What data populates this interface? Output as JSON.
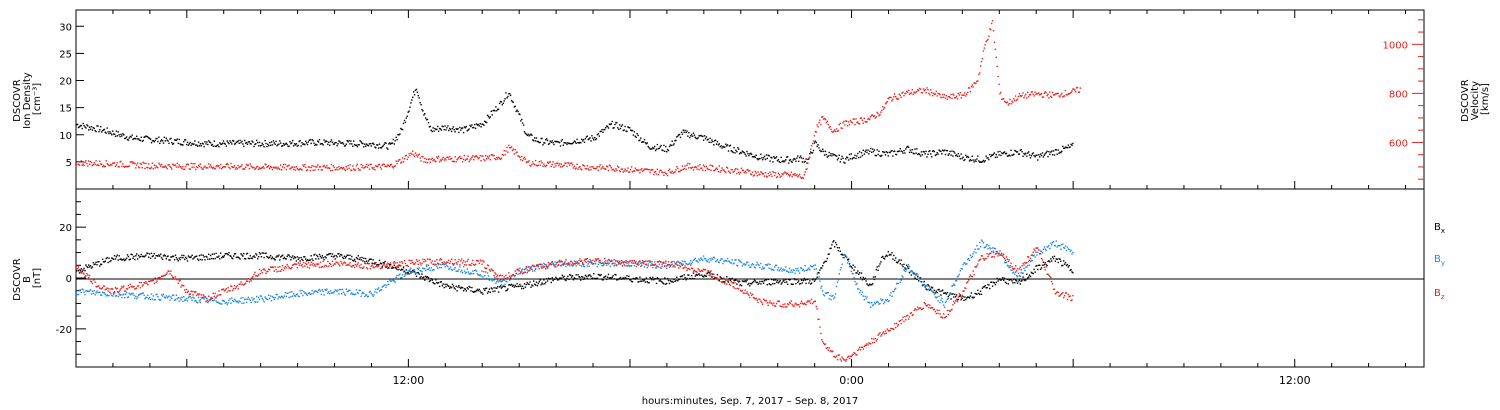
{
  "chart_data": [
    {
      "type": "scatter",
      "panel": "plasma",
      "left_axis": {
        "label_lines": [
          "DSCOVR",
          "Ion Density",
          "[cm⁻³]"
        ],
        "ylim": [
          0,
          33
        ],
        "ticks": [
          5,
          10,
          15,
          20,
          25,
          30
        ],
        "color": "#000000"
      },
      "right_axis": {
        "label_lines": [
          "DSCOVR",
          "Velocity",
          "[km/s]"
        ],
        "ylim": [
          410,
          1140
        ],
        "ticks": [
          600,
          800,
          1000
        ],
        "color": "#e8221e"
      },
      "series": [
        {
          "color": "#000000",
          "axis": "left",
          "points": [
            [
              -21.0,
              12
            ],
            [
              -20.3,
              11
            ],
            [
              -19.5,
              9.5
            ],
            [
              -18.5,
              9
            ],
            [
              -17.5,
              8.5
            ],
            [
              -16.5,
              8.5
            ],
            [
              -15.5,
              8.5
            ],
            [
              -14.5,
              8.7
            ],
            [
              -13.5,
              8.5
            ],
            [
              -13.0,
              8.4
            ],
            [
              -12.5,
              8
            ],
            [
              -12.2,
              11
            ],
            [
              -12.0,
              15
            ],
            [
              -11.8,
              19
            ],
            [
              -11.6,
              14
            ],
            [
              -11.4,
              11
            ],
            [
              -11.0,
              11.5
            ],
            [
              -10.5,
              11
            ],
            [
              -10.0,
              12.2
            ],
            [
              -9.5,
              16
            ],
            [
              -9.3,
              18
            ],
            [
              -9.1,
              15
            ],
            [
              -8.8,
              10
            ],
            [
              -8.5,
              9
            ],
            [
              -8.0,
              8.5
            ],
            [
              -7.5,
              9
            ],
            [
              -7.0,
              9.5
            ],
            [
              -6.5,
              12
            ],
            [
              -6.0,
              11
            ],
            [
              -5.5,
              8
            ],
            [
              -5.0,
              7.5
            ],
            [
              -4.6,
              10.5
            ],
            [
              -4.0,
              9.5
            ],
            [
              -3.5,
              8
            ],
            [
              -3.0,
              7
            ],
            [
              -2.5,
              6
            ],
            [
              -2.0,
              5.5
            ],
            [
              -1.6,
              5.5
            ],
            [
              -1.4,
              5.8
            ],
            [
              -1.2,
              5.3
            ],
            [
              -1.0,
              8.5
            ],
            [
              -0.8,
              7
            ],
            [
              -0.5,
              6
            ],
            [
              -0.2,
              5.5
            ],
            [
              0.0,
              6.2
            ],
            [
              0.5,
              7
            ],
            [
              1.0,
              6.5
            ],
            [
              1.5,
              7.5
            ],
            [
              2.0,
              6.5
            ],
            [
              2.5,
              7
            ],
            [
              3.0,
              6
            ],
            [
              3.5,
              5.5
            ],
            [
              4.0,
              6.5
            ],
            [
              4.5,
              7
            ],
            [
              5.0,
              6
            ],
            [
              5.5,
              7
            ],
            [
              6.0,
              8
            ]
          ]
        },
        {
          "color": "#e8221e",
          "axis": "right",
          "points": [
            [
              -21.0,
              520
            ],
            [
              -20.0,
              515
            ],
            [
              -19.0,
              508
            ],
            [
              -18.0,
              505
            ],
            [
              -17.0,
              505
            ],
            [
              -16.0,
              502
            ],
            [
              -15.0,
              500
            ],
            [
              -14.0,
              500
            ],
            [
              -13.0,
              502
            ],
            [
              -12.5,
              505
            ],
            [
              -12.2,
              530
            ],
            [
              -11.9,
              560
            ],
            [
              -11.6,
              530
            ],
            [
              -11.3,
              535
            ],
            [
              -11.0,
              535
            ],
            [
              -10.0,
              538
            ],
            [
              -9.5,
              545
            ],
            [
              -9.3,
              580
            ],
            [
              -9.1,
              560
            ],
            [
              -8.8,
              520
            ],
            [
              -8.0,
              512
            ],
            [
              -7.0,
              500
            ],
            [
              -6.5,
              498
            ],
            [
              -6.0,
              492
            ],
            [
              -5.5,
              485
            ],
            [
              -5.0,
              480
            ],
            [
              -4.5,
              505
            ],
            [
              -4.0,
              500
            ],
            [
              -3.5,
              493
            ],
            [
              -3.0,
              485
            ],
            [
              -2.5,
              475
            ],
            [
              -2.0,
              470
            ],
            [
              -1.6,
              470
            ],
            [
              -1.3,
              460
            ],
            [
              -1.2,
              520
            ],
            [
              -1.0,
              650
            ],
            [
              -0.8,
              700
            ],
            [
              -0.5,
              650
            ],
            [
              -0.2,
              680
            ],
            [
              0.2,
              690
            ],
            [
              0.5,
              700
            ],
            [
              0.8,
              730
            ],
            [
              1.0,
              780
            ],
            [
              1.5,
              805
            ],
            [
              2.0,
              815
            ],
            [
              2.5,
              785
            ],
            [
              2.8,
              790
            ],
            [
              3.0,
              795
            ],
            [
              3.2,
              820
            ],
            [
              3.4,
              860
            ],
            [
              3.6,
              1000
            ],
            [
              3.8,
              1090
            ],
            [
              4.0,
              800
            ],
            [
              4.2,
              760
            ],
            [
              4.5,
              790
            ],
            [
              5.0,
              800
            ],
            [
              5.5,
              795
            ],
            [
              6.0,
              810
            ],
            [
              6.2,
              820
            ]
          ]
        }
      ]
    },
    {
      "type": "scatter",
      "panel": "imf",
      "left_axis": {
        "label_lines": [
          "DSCOVR",
          "B",
          "[nT]"
        ],
        "ylim": [
          -35,
          35
        ],
        "ticks": [
          -20,
          0,
          20
        ],
        "color": "#000000"
      },
      "zero_line": true,
      "series": [
        {
          "name": "Bx",
          "name_main": "B",
          "name_sub": "x",
          "color": "#000000",
          "points": [
            [
              -21.0,
              3
            ],
            [
              -20.0,
              8
            ],
            [
              -19.0,
              9
            ],
            [
              -18.0,
              8
            ],
            [
              -17.0,
              9
            ],
            [
              -16.0,
              9
            ],
            [
              -15.0,
              8
            ],
            [
              -14.0,
              9
            ],
            [
              -13.0,
              7
            ],
            [
              -12.0,
              3
            ],
            [
              -11.0,
              -3
            ],
            [
              -10.0,
              -5
            ],
            [
              -9.0,
              -3
            ],
            [
              -8.0,
              0
            ],
            [
              -7.0,
              1
            ],
            [
              -6.0,
              0
            ],
            [
              -5.0,
              -1
            ],
            [
              -4.0,
              2
            ],
            [
              -3.0,
              -2
            ],
            [
              -2.0,
              -1
            ],
            [
              -1.0,
              -1
            ],
            [
              -0.8,
              5
            ],
            [
              -0.5,
              14
            ],
            [
              0.0,
              5
            ],
            [
              0.5,
              -3
            ],
            [
              0.8,
              8
            ],
            [
              1.0,
              10
            ],
            [
              1.5,
              4
            ],
            [
              2.0,
              -3
            ],
            [
              2.5,
              -6
            ],
            [
              3.0,
              -8
            ],
            [
              3.5,
              -5
            ],
            [
              4.0,
              0
            ],
            [
              4.5,
              -2
            ],
            [
              5.0,
              4
            ],
            [
              5.5,
              8
            ],
            [
              6.0,
              3
            ]
          ]
        },
        {
          "name": "By",
          "name_main": "B",
          "name_sub": "y",
          "color": "#1f88e0",
          "points": [
            [
              -21.0,
              -5
            ],
            [
              -20.0,
              -6
            ],
            [
              -19.0,
              -7
            ],
            [
              -18.0,
              -8
            ],
            [
              -17.0,
              -9
            ],
            [
              -16.0,
              -8
            ],
            [
              -15.0,
              -6
            ],
            [
              -14.0,
              -5
            ],
            [
              -13.0,
              -6
            ],
            [
              -12.0,
              3
            ],
            [
              -11.0,
              5
            ],
            [
              -10.0,
              2
            ],
            [
              -9.5,
              -2
            ],
            [
              -9.0,
              3
            ],
            [
              -8.0,
              6
            ],
            [
              -7.0,
              6
            ],
            [
              -6.0,
              6
            ],
            [
              -5.0,
              5
            ],
            [
              -4.0,
              8
            ],
            [
              -3.0,
              6
            ],
            [
              -2.0,
              4
            ],
            [
              -1.5,
              3
            ],
            [
              -1.0,
              5
            ],
            [
              -0.8,
              -5
            ],
            [
              -0.5,
              -8
            ],
            [
              -0.2,
              10
            ],
            [
              0.2,
              -5
            ],
            [
              0.5,
              -10
            ],
            [
              1.0,
              -8
            ],
            [
              1.5,
              5
            ],
            [
              2.0,
              -3
            ],
            [
              2.5,
              -10
            ],
            [
              3.0,
              5
            ],
            [
              3.5,
              14
            ],
            [
              4.0,
              10
            ],
            [
              4.5,
              0
            ],
            [
              5.0,
              10
            ],
            [
              5.5,
              14
            ],
            [
              6.0,
              10
            ]
          ]
        },
        {
          "name": "Bz",
          "name_main": "B",
          "name_sub": "z",
          "color": "#e8221e",
          "points": [
            [
              -21.0,
              5
            ],
            [
              -20.5,
              -2
            ],
            [
              -20.0,
              -5
            ],
            [
              -19.5,
              -3
            ],
            [
              -19.0,
              -2
            ],
            [
              -18.5,
              3
            ],
            [
              -18.0,
              -5
            ],
            [
              -17.5,
              -8
            ],
            [
              -17.0,
              -5
            ],
            [
              -16.5,
              -2
            ],
            [
              -16.0,
              3
            ],
            [
              -15.0,
              5
            ],
            [
              -14.0,
              6
            ],
            [
              -13.0,
              5
            ],
            [
              -12.0,
              6
            ],
            [
              -11.0,
              7
            ],
            [
              -10.0,
              6
            ],
            [
              -9.5,
              0
            ],
            [
              -9.0,
              3
            ],
            [
              -8.0,
              6
            ],
            [
              -7.0,
              7
            ],
            [
              -6.0,
              6
            ],
            [
              -5.0,
              6
            ],
            [
              -4.0,
              3
            ],
            [
              -3.0,
              -4
            ],
            [
              -2.5,
              -9
            ],
            [
              -2.0,
              -10
            ],
            [
              -1.5,
              -10
            ],
            [
              -1.0,
              -9
            ],
            [
              -0.8,
              -25
            ],
            [
              -0.5,
              -30
            ],
            [
              -0.2,
              -32
            ],
            [
              0.2,
              -28
            ],
            [
              0.5,
              -25
            ],
            [
              1.0,
              -20
            ],
            [
              1.5,
              -15
            ],
            [
              2.0,
              -10
            ],
            [
              2.5,
              -15
            ],
            [
              3.0,
              -5
            ],
            [
              3.5,
              8
            ],
            [
              4.0,
              10
            ],
            [
              4.5,
              3
            ],
            [
              5.0,
              12
            ],
            [
              5.5,
              -5
            ],
            [
              6.0,
              -8
            ]
          ]
        }
      ]
    }
  ],
  "x_axis": {
    "range_hours": [
      -21.0,
      15.5
    ],
    "tick_labels": [
      {
        "hour": -12,
        "label": "12:00"
      },
      {
        "hour": 0,
        "label": "0:00"
      },
      {
        "hour": 12,
        "label": "12:00"
      }
    ],
    "title": "hours:minutes, Sep.  7, 2017 – Sep.  8, 2017"
  }
}
